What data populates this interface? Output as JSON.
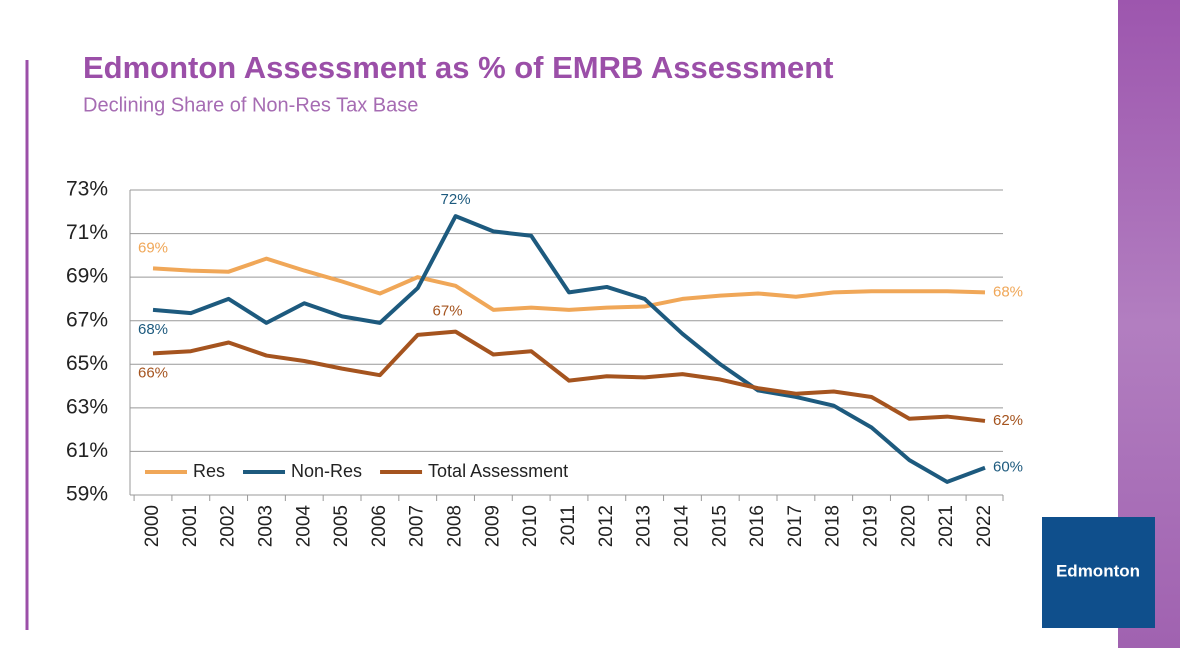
{
  "chart_data": {
    "type": "line",
    "title": "Edmonton Assessment as % of EMRB Assessment",
    "subtitle": "Declining Share of Non-Res Tax Base",
    "categories": [
      "2000",
      "2001",
      "2002",
      "2003",
      "2004",
      "2005",
      "2006",
      "2007",
      "2008",
      "2009",
      "2010",
      "2011",
      "2012",
      "2013",
      "2014",
      "2015",
      "2016",
      "2017",
      "2018",
      "2019",
      "2020",
      "2021",
      "2022"
    ],
    "series": [
      {
        "name": "Res",
        "color": "#f0a758",
        "values": [
          69.4,
          69.3,
          69.25,
          69.85,
          69.3,
          68.8,
          68.25,
          69.0,
          68.6,
          67.5,
          67.6,
          67.5,
          67.6,
          67.65,
          68.0,
          68.15,
          68.25,
          68.1,
          68.3,
          68.35,
          68.35,
          68.35,
          68.3
        ],
        "value_labels": [
          "69%",
          null,
          null,
          null,
          null,
          null,
          null,
          null,
          null,
          null,
          null,
          null,
          null,
          null,
          null,
          null,
          null,
          null,
          null,
          null,
          null,
          null,
          "68%"
        ]
      },
      {
        "name": "Non-Res",
        "color": "#1d5a7e",
        "values": [
          67.5,
          67.35,
          68.0,
          66.9,
          67.8,
          67.2,
          66.9,
          68.5,
          71.8,
          71.1,
          70.9,
          68.3,
          68.55,
          68.0,
          66.4,
          65.0,
          63.8,
          63.5,
          63.1,
          62.1,
          60.6,
          59.6,
          60.25
        ],
        "value_labels": [
          "68%",
          null,
          null,
          null,
          null,
          null,
          null,
          null,
          "72%",
          null,
          null,
          null,
          null,
          null,
          null,
          null,
          null,
          null,
          null,
          null,
          null,
          null,
          "60%"
        ]
      },
      {
        "name": "Total Assessment",
        "color": "#a5541f",
        "values": [
          65.5,
          65.6,
          66.0,
          65.4,
          65.15,
          64.8,
          64.5,
          66.35,
          66.5,
          65.45,
          65.6,
          64.25,
          64.45,
          64.4,
          64.55,
          64.3,
          63.9,
          63.65,
          63.75,
          63.5,
          62.5,
          62.6,
          62.4
        ],
        "value_labels": [
          "66%",
          null,
          null,
          null,
          null,
          null,
          null,
          null,
          "67%",
          null,
          null,
          null,
          null,
          null,
          null,
          null,
          null,
          null,
          null,
          null,
          null,
          null,
          "62%"
        ]
      }
    ],
    "ylim": [
      59,
      73
    ],
    "yticks": [
      {
        "value": 59,
        "label": "59%"
      },
      {
        "value": 61,
        "label": "61%"
      },
      {
        "value": 63,
        "label": "63%"
      },
      {
        "value": 65,
        "label": "65%"
      },
      {
        "value": 67,
        "label": "67%"
      },
      {
        "value": 69,
        "label": "69%"
      },
      {
        "value": 71,
        "label": "71%"
      },
      {
        "value": 73,
        "label": "73%"
      }
    ],
    "grid": true,
    "legend": "lower left"
  },
  "logo": "Edmonton"
}
